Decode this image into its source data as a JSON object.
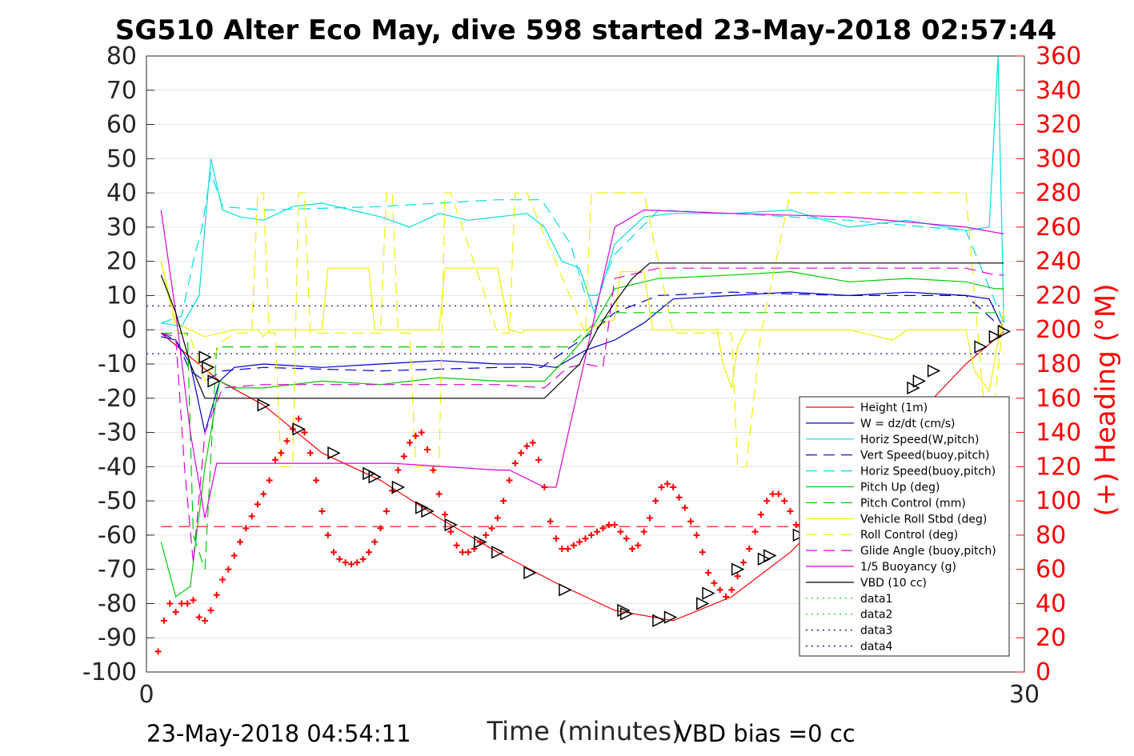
{
  "title": "SG510 Alter Eco May, dive 598 started 23-May-2018 02:57:44",
  "footer": {
    "end_time": "23-May-2018 04:54:11",
    "vbd_bias": "VBD bias =0 cc"
  },
  "chart_data": {
    "type": "line",
    "xlabel": "Time (minutes)",
    "ylabel_right": "(+) Heading (°M)",
    "xlim": [
      0,
      30
    ],
    "ylim": [
      -100,
      80
    ],
    "ylim_right": [
      0,
      360
    ],
    "x_ticks": [
      "0",
      "30"
    ],
    "y_ticks": [
      "80",
      "70",
      "60",
      "50",
      "40",
      "30",
      "20",
      "10",
      "0",
      "-10",
      "-20",
      "-30",
      "-40",
      "-50",
      "-60",
      "-70",
      "-80",
      "-90",
      "-100"
    ],
    "y_ticks_right": [
      "360",
      "340",
      "320",
      "300",
      "280",
      "260",
      "240",
      "220",
      "200",
      "180",
      "160",
      "140",
      "120",
      "100",
      "80",
      "60",
      "40",
      "20",
      "0"
    ],
    "grid": true,
    "legend_position": "lower-right",
    "colors": {
      "red": "#ff0000",
      "blue": "#0000cd",
      "cyan": "#00e0e0",
      "green": "#00cc00",
      "yellow": "#f0f000",
      "magenta": "#dd00dd",
      "black": "#000000",
      "navy": "#00008b"
    },
    "legend": [
      {
        "label": "Height (1m)",
        "color": "#ff0000",
        "style": "solid"
      },
      {
        "label": "W = dz/dt (cm/s)",
        "color": "#0000cd",
        "style": "solid"
      },
      {
        "label": "Horiz Speed(W,pitch)",
        "color": "#00e0e0",
        "style": "solid"
      },
      {
        "label": "Vert Speed(buoy,pitch)",
        "color": "#0000cd",
        "style": "dashed"
      },
      {
        "label": "Horiz Speed(buoy,pitch)",
        "color": "#00e0e0",
        "style": "dashed"
      },
      {
        "label": "Pitch Up (deg)",
        "color": "#00cc00",
        "style": "solid"
      },
      {
        "label": "Pitch Control (mm)",
        "color": "#00cc00",
        "style": "dashed"
      },
      {
        "label": "Vehicle Roll Stbd (deg)",
        "color": "#f0f000",
        "style": "solid"
      },
      {
        "label": "Roll Control (deg)",
        "color": "#f0f000",
        "style": "dashed"
      },
      {
        "label": "Glide Angle (buoy,pitch)",
        "color": "#dd00dd",
        "style": "dashed"
      },
      {
        "label": "1/5 Buoyancy (g)",
        "color": "#dd00dd",
        "style": "solid"
      },
      {
        "label": "VBD (10 cc)",
        "color": "#000000",
        "style": "solid"
      },
      {
        "label": "data1",
        "color": "#00cc00",
        "style": "dotted"
      },
      {
        "label": "data2",
        "color": "#00cc00",
        "style": "dotted"
      },
      {
        "label": "data3",
        "color": "#00008b",
        "style": "dotted"
      },
      {
        "label": "data4",
        "color": "#00008b",
        "style": "dotted"
      }
    ],
    "series": [
      {
        "name": "Height (1m)",
        "color": "#ff0000",
        "style": "solid",
        "x": [
          0.5,
          1.5,
          2.5,
          4,
          6,
          8,
          10,
          12,
          14,
          16,
          18,
          20,
          22,
          24,
          26,
          28,
          29.3
        ],
        "y": [
          -1,
          -8,
          -15,
          -22,
          -36,
          -44,
          -55,
          -65,
          -74,
          -82,
          -85,
          -78,
          -65,
          -48,
          -28,
          -10,
          -0.5
        ]
      },
      {
        "name": "W = dz/dt (cm/s)",
        "color": "#0000cd",
        "style": "solid",
        "x": [
          0.5,
          1,
          1.5,
          2,
          2.5,
          3,
          4,
          6,
          8,
          10,
          12,
          13,
          14,
          15,
          16,
          17,
          18,
          20,
          22,
          24,
          26,
          28,
          28.8,
          29.3
        ],
        "y": [
          -2,
          -3,
          -10,
          -30,
          -15,
          -11,
          -10,
          -11,
          -10,
          -9,
          -10,
          -10,
          -11,
          -6,
          -3,
          2,
          9,
          10,
          11,
          10,
          11,
          10,
          9,
          0
        ]
      },
      {
        "name": "Horiz Speed(W,pitch)",
        "color": "#00e0e0",
        "style": "solid",
        "x": [
          0.5,
          1.2,
          1.8,
          2.2,
          2.6,
          3.2,
          4,
          5,
          6,
          7,
          8,
          9,
          10,
          11,
          12,
          13,
          13.6,
          14.2,
          14.8,
          15.3,
          16,
          17,
          18,
          20,
          22,
          24,
          26,
          28,
          28.8,
          29.1,
          29.3
        ],
        "y": [
          2,
          1,
          10,
          50,
          35,
          33,
          32,
          36,
          37,
          35,
          33,
          30,
          34,
          32,
          33,
          34,
          30,
          20,
          18,
          5,
          25,
          33,
          34,
          34,
          35,
          30,
          32,
          29,
          30,
          80,
          2
        ]
      },
      {
        "name": "Vert Speed(buoy,pitch)",
        "color": "#0000cd",
        "style": "dashed",
        "x": [
          0.5,
          1,
          1.5,
          2,
          2.6,
          4,
          8,
          12,
          13.5,
          14.5,
          15.2,
          16,
          17.5,
          20,
          24,
          28,
          29.3
        ],
        "y": [
          -1,
          -3,
          -12,
          -15,
          -12,
          -11,
          -12,
          -11,
          -11,
          -5,
          -1,
          5,
          10,
          11,
          10,
          10,
          0
        ]
      },
      {
        "name": "Horiz Speed(buoy,pitch)",
        "color": "#00e0e0",
        "style": "dashed",
        "x": [
          0.5,
          1.2,
          1.6,
          1.9,
          2.2,
          2.6,
          4,
          8,
          12,
          13.5,
          14.5,
          15,
          15.4,
          16,
          17.5,
          20,
          24,
          28,
          29.3
        ],
        "y": [
          2,
          4,
          20,
          30,
          46,
          36,
          35,
          36,
          38,
          38,
          25,
          10,
          10,
          22,
          35,
          34,
          32,
          29,
          2
        ]
      },
      {
        "name": "Pitch Up (deg)",
        "color": "#00cc00",
        "style": "solid",
        "x": [
          0.5,
          1,
          1.5,
          2,
          2.5,
          3,
          4,
          6,
          8,
          10,
          12,
          13.6,
          14.5,
          15.2,
          16,
          17.5,
          20,
          22,
          24,
          26,
          28,
          29,
          29.3
        ],
        "y": [
          -62,
          -78,
          -75,
          -40,
          -15,
          -17,
          -17,
          -15,
          -16,
          -14,
          -15,
          -15,
          -7,
          0,
          12,
          15,
          16,
          17,
          14,
          15,
          14,
          12,
          12
        ]
      },
      {
        "name": "Pitch Control (mm)",
        "color": "#00cc00",
        "style": "dashed",
        "x": [
          0.5,
          1.4,
          1.6,
          2,
          2.4,
          4,
          8,
          12,
          13.6,
          14.4,
          15.2,
          16,
          17.5,
          20,
          24,
          28,
          29.3
        ],
        "y": [
          -1,
          -1,
          -60,
          -70,
          -5,
          -5,
          -5,
          -5,
          -5,
          -5,
          1,
          5,
          5,
          5,
          5,
          5,
          5
        ]
      },
      {
        "name": "Vehicle Roll Stbd (deg)",
        "color": "#f0f000",
        "style": "solid",
        "x": [
          0.5,
          1,
          2,
          2.5,
          3,
          3.8,
          4,
          4.2,
          6,
          6.2,
          7.6,
          7.8,
          8.2,
          8.4,
          10,
          10.2,
          12,
          12.4,
          12.8,
          13,
          15,
          16,
          16.2,
          17,
          17.3,
          18,
          18.3,
          18.5,
          19.5,
          19.7,
          20,
          20.2,
          20.5,
          21,
          24,
          25.5,
          26,
          28,
          28.3,
          28.8,
          29.3
        ],
        "y": [
          20,
          2,
          -2,
          -1,
          0,
          0,
          -2,
          0,
          0,
          18,
          18,
          0,
          0,
          0,
          0,
          18,
          18,
          0,
          -1,
          0,
          0,
          3,
          17,
          17,
          0,
          0,
          0,
          0,
          0,
          -10,
          -17,
          -5,
          0,
          0,
          0,
          -3,
          0,
          0,
          -12,
          -18,
          6
        ]
      },
      {
        "name": "Roll Control (deg)",
        "color": "#f0f000",
        "style": "dashed",
        "x": [
          0.5,
          1,
          1.5,
          2,
          2.5,
          3,
          3.6,
          3.8,
          4,
          4.2,
          4.4,
          4.6,
          5,
          5.2,
          5.4,
          5.6,
          6,
          8,
          8.2,
          8.4,
          8.6,
          9,
          9.2,
          10,
          10.2,
          10.4,
          12,
          12.4,
          12.6,
          13,
          15,
          15.2,
          17,
          18,
          20,
          20.2,
          20.5,
          21,
          22,
          26,
          28,
          28.6,
          29,
          29.3
        ],
        "y": [
          20,
          0,
          -2,
          -15,
          -4,
          -1,
          -1,
          40,
          40,
          -1,
          -1,
          -40,
          -40,
          40,
          40,
          -1,
          -1,
          -1,
          40,
          40,
          -1,
          -1,
          -40,
          -40,
          40,
          40,
          -1,
          -1,
          40,
          40,
          -1,
          40,
          40,
          -1,
          -1,
          -40,
          -40,
          -1,
          40,
          40,
          40,
          -20,
          -20,
          5
        ]
      },
      {
        "name": "Glide Angle (buoy,pitch)",
        "color": "#dd00dd",
        "style": "dashed",
        "x": [
          0.5,
          1,
          1.3,
          1.6,
          2,
          2.6,
          4,
          8,
          12,
          13.6,
          14.4,
          15,
          15.6,
          16,
          17.5,
          20,
          24,
          28,
          29,
          29.3
        ],
        "y": [
          -1,
          -2,
          -40,
          -68,
          -30,
          -17,
          -16,
          -16,
          -16,
          -17,
          -11,
          -10,
          -11,
          15,
          18,
          18,
          18,
          18,
          16,
          16
        ]
      },
      {
        "name": "1/5 Buoyancy (g)",
        "color": "#dd00dd",
        "style": "solid",
        "x": [
          0.5,
          1,
          1.5,
          1.8,
          2,
          2.4,
          4,
          8,
          8.4,
          12,
          12.4,
          13.6,
          14,
          16,
          17,
          20,
          24,
          28,
          29.3
        ],
        "y": [
          35,
          5,
          -30,
          -45,
          -55,
          -39,
          -39,
          -39,
          -39,
          -41,
          -41,
          -46,
          -46,
          30,
          35,
          34,
          33,
          30,
          28
        ]
      },
      {
        "name": "VBD (10 cc)",
        "color": "#000000",
        "style": "solid",
        "x": [
          0.5,
          1,
          1.5,
          2,
          2.6,
          4,
          8,
          12,
          13.6,
          14.8,
          15.4,
          16,
          16.6,
          17.2,
          24,
          28,
          29.3
        ],
        "y": [
          16,
          5,
          -10,
          -20,
          -20,
          -20,
          -20,
          -20,
          -20,
          -10,
          0,
          8,
          15,
          19.5,
          19.5,
          19.5,
          19.5
        ]
      },
      {
        "name": "data3",
        "color": "#00008b",
        "style": "dotted",
        "x": [
          0,
          29.3
        ],
        "y": [
          7,
          7
        ]
      },
      {
        "name": "data4",
        "color": "#00008b",
        "style": "dotted",
        "x": [
          0,
          29.3
        ],
        "y": [
          -7,
          -7
        ]
      },
      {
        "name": "mean heading",
        "color": "#ff0000",
        "style": "dashed",
        "x": [
          0.5,
          29.3
        ],
        "y": [
          -57.5,
          -57.5
        ]
      }
    ],
    "heading_series": {
      "name": "(+) Heading",
      "color": "#ff0000",
      "marker": "+",
      "x": [
        0.4,
        0.6,
        0.8,
        1.0,
        1.2,
        1.4,
        1.6,
        1.8,
        2.0,
        2.2,
        2.4,
        2.6,
        2.8,
        3.0,
        3.2,
        3.4,
        3.6,
        3.8,
        4.0,
        4.2,
        4.4,
        4.6,
        4.8,
        5.0,
        5.2,
        5.4,
        5.6,
        5.8,
        6.0,
        6.2,
        6.4,
        6.6,
        6.8,
        7.0,
        7.2,
        7.4,
        7.6,
        7.8,
        8.0,
        8.2,
        8.4,
        8.6,
        8.8,
        9.0,
        9.2,
        9.4,
        9.6,
        9.8,
        10.0,
        10.2,
        10.4,
        10.6,
        10.8,
        11.0,
        11.2,
        11.4,
        11.6,
        11.8,
        12.0,
        12.2,
        12.4,
        12.6,
        12.8,
        13.0,
        13.2,
        13.4,
        13.6,
        13.8,
        14.0,
        14.2,
        14.4,
        14.6,
        14.8,
        15.0,
        15.2,
        15.4,
        15.6,
        15.8,
        16.0,
        16.2,
        16.4,
        16.6,
        16.8,
        17.0,
        17.2,
        17.4,
        17.6,
        17.8,
        18.0,
        18.2,
        18.4,
        18.6,
        18.8,
        19.0,
        19.2,
        19.4,
        19.6,
        19.8,
        20.0,
        20.2,
        20.4,
        20.6,
        20.8,
        21.0,
        21.2,
        21.4,
        21.6,
        21.8,
        22.0,
        22.2,
        22.4,
        22.6,
        22.8,
        23.0,
        23.2,
        23.4,
        23.6,
        23.8,
        24.0,
        24.2,
        24.4,
        24.6,
        24.8,
        25.0,
        25.2,
        25.4,
        25.6,
        25.8,
        26.0,
        26.2,
        26.4,
        26.6,
        26.8,
        27.0,
        27.2,
        27.4,
        27.6,
        27.8,
        28.0,
        28.2,
        28.4,
        28.6,
        28.8,
        29.0,
        29.2
      ],
      "y": [
        12,
        30,
        40,
        35,
        40,
        40,
        42,
        32,
        30,
        36,
        45,
        54,
        60,
        68,
        76,
        84,
        91,
        98,
        104,
        112,
        124,
        128,
        135,
        142,
        148,
        140,
        128,
        112,
        94,
        80,
        70,
        66,
        64,
        63,
        64,
        66,
        70,
        76,
        84,
        94,
        106,
        118,
        126,
        134,
        138,
        140,
        130,
        118,
        104,
        92,
        82,
        74,
        70,
        70,
        72,
        76,
        80,
        84,
        90,
        100,
        112,
        122,
        128,
        132,
        134,
        124,
        108,
        88,
        78,
        72,
        72,
        74,
        76,
        78,
        80,
        82,
        84,
        86,
        86,
        82,
        78,
        72,
        74,
        82,
        90,
        100,
        108,
        110,
        108,
        102,
        96,
        88,
        80,
        70,
        58,
        52,
        48,
        44,
        48,
        56,
        64,
        72,
        82,
        92,
        100,
        104,
        104,
        100,
        94,
        86,
        80,
        76,
        74,
        70,
        66,
        62,
        58,
        54,
        50,
        48,
        46,
        50,
        60,
        68,
        72,
        70,
        64,
        58,
        52,
        48,
        46,
        44,
        44,
        44,
        44,
        46,
        44,
        44,
        44,
        44,
        44,
        44,
        44,
        46,
        44
      ]
    },
    "triangle_markers": {
      "x": [
        2.0,
        2.1,
        2.3,
        4.0,
        5.2,
        6.4,
        7.6,
        7.8,
        8.6,
        9.4,
        9.6,
        10.4,
        11.4,
        12.0,
        13.1,
        14.3,
        16.3,
        16.4,
        17.5,
        17.9,
        19.0,
        19.2,
        20.2,
        21.1,
        21.3,
        22.3,
        23.6,
        24.0,
        26.2,
        26.4,
        26.9,
        28.5,
        29.0,
        29.3
      ],
      "y": [
        -8,
        -11,
        -15,
        -22,
        -29,
        -36,
        -42,
        -43,
        -46,
        -52,
        -53,
        -57,
        -62,
        -65,
        -71,
        -76,
        -82,
        -83,
        -85,
        -84,
        -80,
        -77,
        -70,
        -67,
        -66,
        -60,
        -52,
        -50,
        -17,
        -15,
        -12,
        -5,
        -2,
        -0.5
      ]
    }
  }
}
